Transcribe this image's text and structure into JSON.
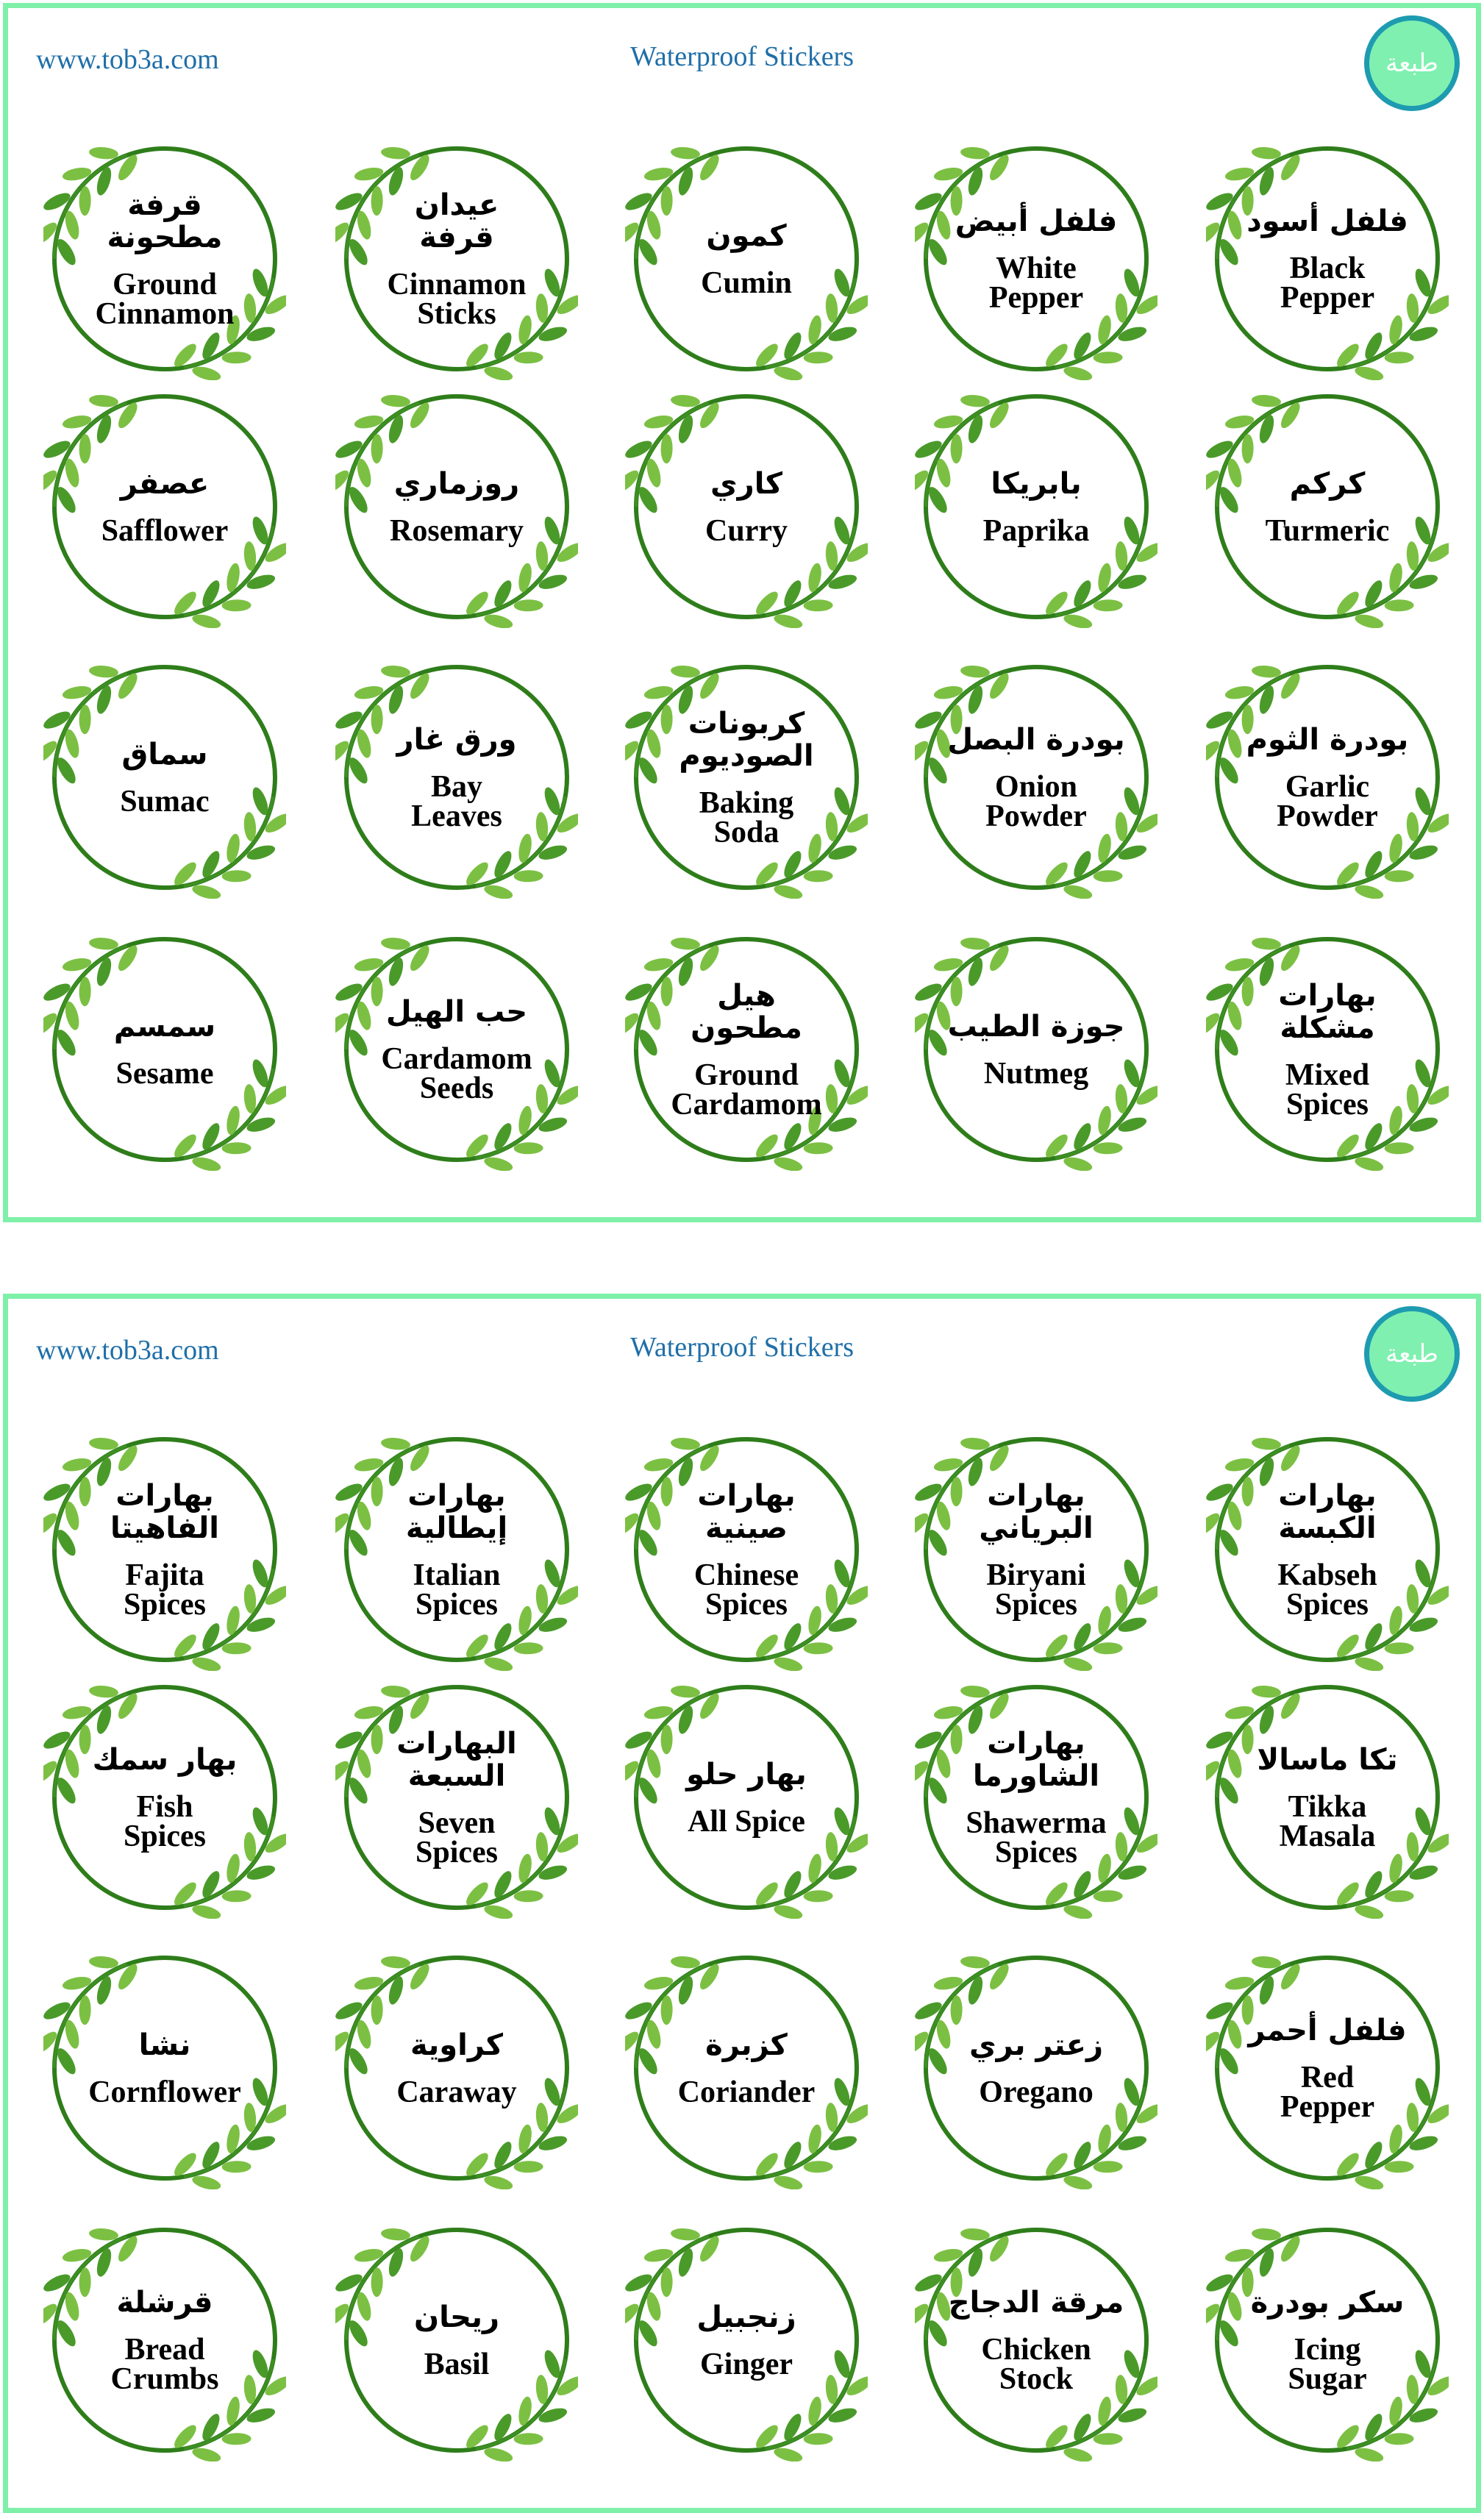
{
  "sheets": [
    {
      "website": "www.tob3a.com",
      "title": "Waterproof Stickers",
      "logo": "طبعة",
      "stickers": [
        {
          "arabic": "قرفة\nمطحونة",
          "english": "Ground\nCinnamon"
        },
        {
          "arabic": "عيدان\nقرفة",
          "english": "Cinnamon\nSticks"
        },
        {
          "arabic": "كمون",
          "english": "Cumin"
        },
        {
          "arabic": "فلفل أبيض",
          "english": "White\nPepper"
        },
        {
          "arabic": "فلفل أسود",
          "english": "Black\nPepper"
        },
        {
          "arabic": "عصفر",
          "english": "Safflower"
        },
        {
          "arabic": "روزماري",
          "english": "Rosemary"
        },
        {
          "arabic": "كاري",
          "english": "Curry"
        },
        {
          "arabic": "بابريكا",
          "english": "Paprika"
        },
        {
          "arabic": "كركم",
          "english": "Turmeric"
        },
        {
          "arabic": "سماق",
          "english": "Sumac"
        },
        {
          "arabic": "ورق غار",
          "english": "Bay\nLeaves"
        },
        {
          "arabic": "كربونات\nالصوديوم",
          "english": "Baking\nSoda"
        },
        {
          "arabic": "بودرة البصل",
          "english": "Onion\nPowder"
        },
        {
          "arabic": "بودرة الثوم",
          "english": "Garlic\nPowder"
        },
        {
          "arabic": "سمسم",
          "english": "Sesame"
        },
        {
          "arabic": "حب الهيل",
          "english": "Cardamom\nSeeds"
        },
        {
          "arabic": "هيل\nمطحون",
          "english": "Ground\nCardamom"
        },
        {
          "arabic": "جوزة الطيب",
          "english": "Nutmeg"
        },
        {
          "arabic": "بهارات\nمشكلة",
          "english": "Mixed\nSpices"
        }
      ]
    },
    {
      "website": "www.tob3a.com",
      "title": "Waterproof Stickers",
      "logo": "طبعة",
      "stickers": [
        {
          "arabic": "بهارات\nالفاهيتا",
          "english": "Fajita\nSpices"
        },
        {
          "arabic": "بهارات\nإيطالية",
          "english": "Italian\nSpices"
        },
        {
          "arabic": "بهارات\nصينية",
          "english": "Chinese\nSpices"
        },
        {
          "arabic": "بهارات\nالبرياني",
          "english": "Biryani\nSpices"
        },
        {
          "arabic": "بهارات\nالكبسة",
          "english": "Kabseh\nSpices"
        },
        {
          "arabic": "بهار سمك",
          "english": "Fish\nSpices"
        },
        {
          "arabic": "البهارات\nالسبعة",
          "english": "Seven\nSpices"
        },
        {
          "arabic": "بهار حلو",
          "english": "All Spice"
        },
        {
          "arabic": "بهارات\nالشاورما",
          "english": "Shawerma\nSpices"
        },
        {
          "arabic": "تكا ماسالا",
          "english": "Tikka\nMasala"
        },
        {
          "arabic": "نشا",
          "english": "Cornflower"
        },
        {
          "arabic": "كراوية",
          "english": "Caraway"
        },
        {
          "arabic": "كزبرة",
          "english": "Coriander"
        },
        {
          "arabic": "زعتر بري",
          "english": "Oregano"
        },
        {
          "arabic": "فلفل أحمر",
          "english": "Red\nPepper"
        },
        {
          "arabic": "قرشلة",
          "english": "Bread\nCrumbs"
        },
        {
          "arabic": "ريحان",
          "english": "Basil"
        },
        {
          "arabic": "زنجبيل",
          "english": "Ginger"
        },
        {
          "arabic": "مرقة الدجاج",
          "english": "Chicken\nStock"
        },
        {
          "arabic": "سكر بودرة",
          "english": "Icing\nSugar"
        }
      ]
    }
  ]
}
